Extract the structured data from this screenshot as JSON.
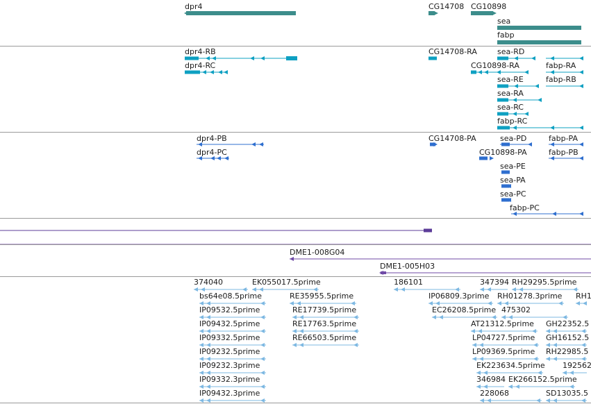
{
  "colors": {
    "gene": "#3c8d8b",
    "transcript": "#0ea0c2",
    "protein": "#2f6fcf",
    "segment": "#5c3d99",
    "clone": "#6f4aa6",
    "est": "#7db8e2",
    "divider": "#9a9a9a"
  },
  "tracks": {
    "genes": [
      {
        "label": "dpr4"
      },
      {
        "label": "CG14708"
      },
      {
        "label": "CG10898"
      },
      {
        "label": "sea"
      },
      {
        "label": "fabp"
      }
    ],
    "transcripts": [
      {
        "label": "dpr4-RB"
      },
      {
        "label": "dpr4-RC"
      },
      {
        "label": "CG14708-RA"
      },
      {
        "label": "CG10898-RA"
      },
      {
        "label": "sea-RD"
      },
      {
        "label": "sea-RE"
      },
      {
        "label": "sea-RA"
      },
      {
        "label": "sea-RC"
      },
      {
        "label": "fabp-RC"
      },
      {
        "label": "fabp-RA"
      },
      {
        "label": "fabp-RB"
      }
    ],
    "proteins": [
      {
        "label": "dpr4-PB"
      },
      {
        "label": "dpr4-PC"
      },
      {
        "label": "CG14708-PA"
      },
      {
        "label": "CG10898-PA"
      },
      {
        "label": "sea-PD"
      },
      {
        "label": "sea-PE"
      },
      {
        "label": "sea-PA"
      },
      {
        "label": "sea-PC"
      },
      {
        "label": "fabp-PA"
      },
      {
        "label": "fabp-PB"
      },
      {
        "label": "fabp-PC"
      }
    ],
    "clones": [
      {
        "label": "DME1-008G04"
      },
      {
        "label": "DME1-005H03"
      }
    ],
    "ests": [
      {
        "label": "374040"
      },
      {
        "label": "EK055017.5prime"
      },
      {
        "label": "186101"
      },
      {
        "label": "347394"
      },
      {
        "label": "RH29295.5prime"
      },
      {
        "label": "bs64e08.5prime"
      },
      {
        "label": "RE35955.5prime"
      },
      {
        "label": "IP06809.3prime"
      },
      {
        "label": "RH01278.3prime"
      },
      {
        "label": "RH1"
      },
      {
        "label": "IP09532.5prime"
      },
      {
        "label": "RE17739.5prime"
      },
      {
        "label": "EC26208.5prime"
      },
      {
        "label": "475302"
      },
      {
        "label": "IP09432.5prime"
      },
      {
        "label": "RE17763.5prime"
      },
      {
        "label": "AT21312.5prime"
      },
      {
        "label": "GH22352.5"
      },
      {
        "label": "IP09332.5prime"
      },
      {
        "label": "RE66503.5prime"
      },
      {
        "label": "LP04727.5prime"
      },
      {
        "label": "GH16152.5"
      },
      {
        "label": "IP09232.5prime"
      },
      {
        "label": "LP09369.5prime"
      },
      {
        "label": "RH22985.5"
      },
      {
        "label": "IP09232.3prime"
      },
      {
        "label": "EK223634.5prime"
      },
      {
        "label": "192562"
      },
      {
        "label": "IP09332.3prime"
      },
      {
        "label": "346984"
      },
      {
        "label": "EK266152.5prime"
      },
      {
        "label": "IP09432.3prime"
      },
      {
        "label": "228068"
      },
      {
        "label": "SD13035.5"
      }
    ]
  }
}
